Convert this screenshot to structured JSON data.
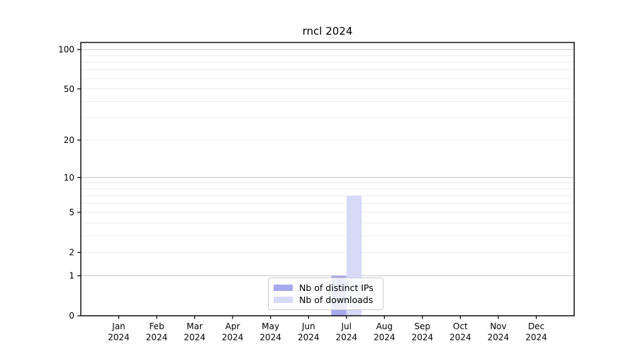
{
  "chart_data": {
    "type": "bar",
    "title": "rncl 2024",
    "categories": [
      "Jan 2024",
      "Feb 2024",
      "Mar 2024",
      "Apr 2024",
      "May 2024",
      "Jun 2024",
      "Jul 2024",
      "Aug 2024",
      "Sep 2024",
      "Oct 2024",
      "Nov 2024",
      "Dec 2024"
    ],
    "series": [
      {
        "name": "Nb of distinct IPs",
        "color": "#a8a8ec",
        "values": [
          0,
          0,
          0,
          0,
          0,
          0,
          1,
          0,
          0,
          0,
          0,
          0
        ]
      },
      {
        "name": "Nb of downloads",
        "color": "#d8d8f7",
        "values": [
          0,
          0,
          0,
          0,
          0,
          0,
          7,
          0,
          0,
          0,
          0,
          0
        ]
      }
    ],
    "yscale": "log1p",
    "ylim": [
      0,
      113
    ],
    "yticks": [
      0,
      1,
      2,
      5,
      10,
      20,
      50,
      100
    ],
    "major_gridlines": [
      1,
      10,
      100
    ],
    "minor_gridlines": [
      2,
      3,
      4,
      5,
      6,
      7,
      8,
      9,
      20,
      30,
      40,
      50,
      60,
      70,
      80,
      90
    ],
    "grid": true,
    "legend_position": "lower center",
    "xlabel": "",
    "ylabel": ""
  },
  "colors": {
    "axis": "#000000",
    "tick_label": "#000000",
    "major_grid": "#c6c6c6",
    "minor_grid": "#ededed",
    "legend_border": "#cccccc",
    "background": "#ffffff"
  }
}
